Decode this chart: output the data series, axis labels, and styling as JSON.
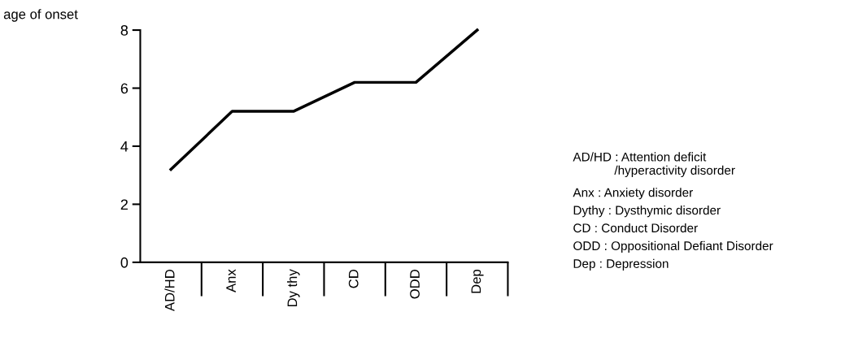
{
  "chart_data": {
    "type": "line",
    "ylabel": "age of onset",
    "categories": [
      "AD/HD",
      "Anx",
      "Dy thy",
      "CD",
      "ODD",
      "Dep"
    ],
    "series": [
      {
        "color": "#000000",
        "values": [
          3.2,
          5.2,
          5.2,
          6.2,
          6.2,
          8.0
        ]
      }
    ],
    "ylim": [
      0,
      8
    ],
    "yticks": [
      0,
      2,
      4,
      6,
      8
    ],
    "grid": false,
    "marker": "none",
    "line_style": "solid",
    "annotations": [
      "AD/HD : Attention deficit\n            /hyperactivity disorder",
      "Anx : Anxiety disorder",
      "Dythy : Dysthymic disorder",
      "CD : Conduct Disorder",
      "ODD : Oppositional Defiant Disorder",
      "Dep : Depression"
    ]
  }
}
